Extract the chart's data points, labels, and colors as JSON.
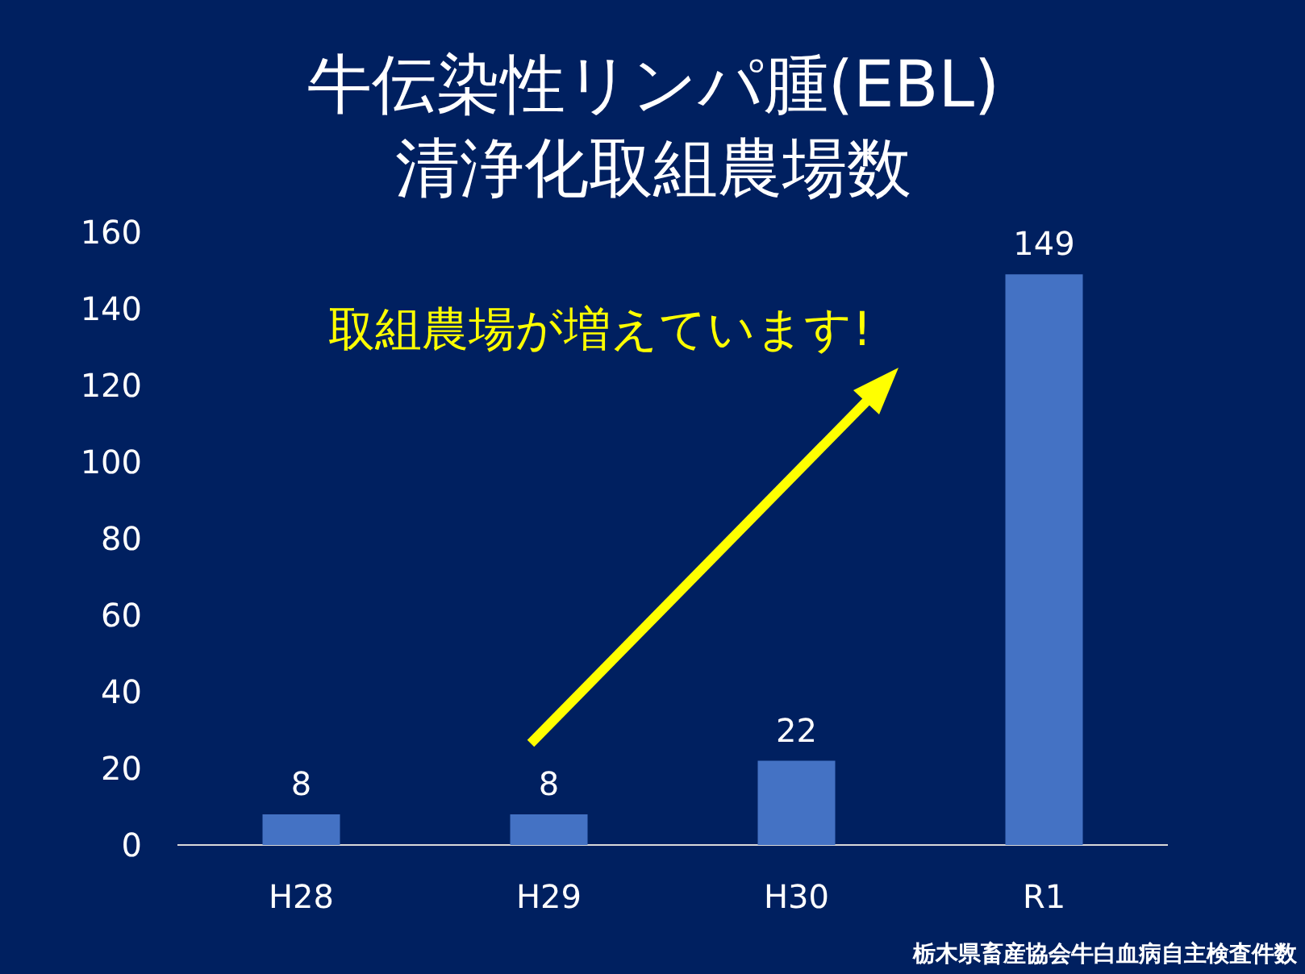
{
  "chart_data": {
    "type": "bar",
    "title": "牛伝染性リンパ腫(EBL)",
    "subtitle": "清浄化取組農場数",
    "categories": [
      "H28",
      "H29",
      "H30",
      "R1"
    ],
    "values": [
      8,
      8,
      22,
      149
    ],
    "color": "#4472c4",
    "ylim": [
      0,
      160
    ],
    "yticks": [
      0,
      20,
      40,
      60,
      80,
      100,
      120,
      140,
      160
    ],
    "data_labels": true,
    "grid": false,
    "annotations": [
      "取組農場が増えています!",
      "栃木県畜産協会牛白血病自主検査件数"
    ]
  }
}
